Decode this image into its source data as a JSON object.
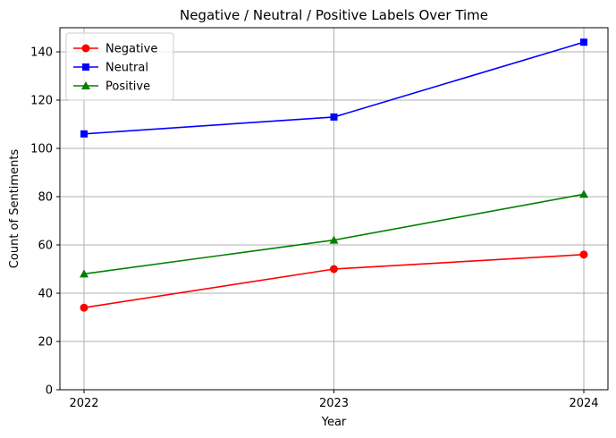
{
  "chart_data": {
    "type": "line",
    "title": "Negative / Neutral / Positive Labels Over Time",
    "xlabel": "Year",
    "ylabel": "Count of Sentiments",
    "categories": [
      "2022",
      "2023",
      "2024"
    ],
    "ylim": [
      0,
      150
    ],
    "yticks": [
      0,
      20,
      40,
      60,
      80,
      100,
      120,
      140
    ],
    "grid": true,
    "legend_position": "top-left",
    "series": [
      {
        "name": "Negative",
        "color": "#ff0000",
        "marker": "circle",
        "values": [
          34,
          50,
          56
        ]
      },
      {
        "name": "Neutral",
        "color": "#0000ff",
        "marker": "square",
        "values": [
          106,
          113,
          144
        ]
      },
      {
        "name": "Positive",
        "color": "#008000",
        "marker": "triangle",
        "values": [
          48,
          62,
          81
        ]
      }
    ]
  }
}
